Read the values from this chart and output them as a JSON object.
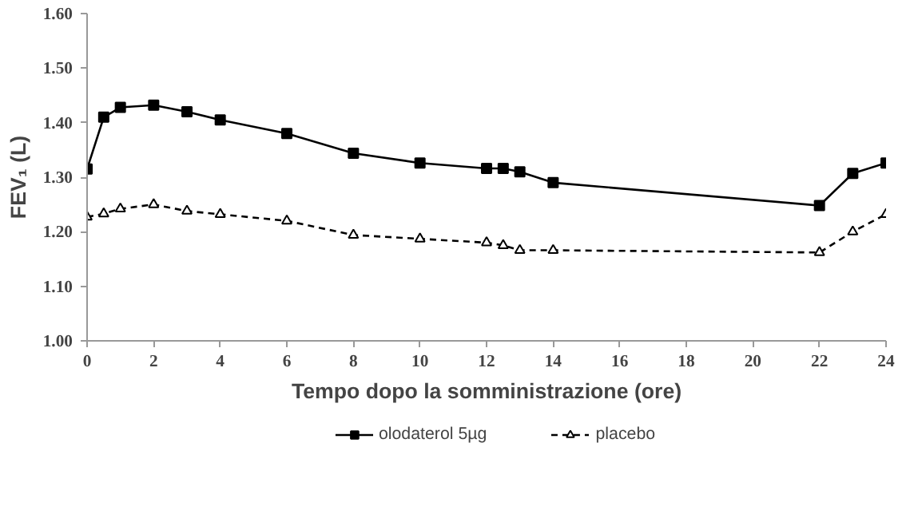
{
  "chart_data": {
    "type": "line",
    "xlabel": "Tempo dopo la somministrazione (ore)",
    "ylabel": "FEV₁ (L)",
    "x": [
      0,
      0.5,
      1,
      2,
      3,
      4,
      6,
      8,
      10,
      12,
      12.5,
      13,
      14,
      22,
      23,
      24
    ],
    "series": [
      {
        "name": "olodaterol 5µg",
        "color": "#000000",
        "marker": "square",
        "line_style": "solid",
        "values": [
          1.315,
          1.41,
          1.428,
          1.432,
          1.42,
          1.405,
          1.38,
          1.344,
          1.326,
          1.316,
          1.316,
          1.31,
          1.29,
          1.248,
          1.307,
          1.326
        ]
      },
      {
        "name": "placebo",
        "color": "#000000",
        "marker": "triangle",
        "line_style": "dashed",
        "values": [
          1.227,
          1.233,
          1.242,
          1.25,
          1.238,
          1.232,
          1.22,
          1.194,
          1.187,
          1.18,
          1.175,
          1.166,
          1.166,
          1.162,
          1.2,
          1.232
        ]
      }
    ],
    "xlim": [
      0,
      24
    ],
    "xticks": [
      0,
      2,
      4,
      6,
      8,
      10,
      12,
      14,
      16,
      18,
      20,
      22,
      24
    ],
    "ylim": [
      1.0,
      1.6
    ],
    "yticks": [
      {
        "value": 1.0,
        "label": "1.00"
      },
      {
        "value": 1.1,
        "label": "1.10"
      },
      {
        "value": 1.2,
        "label": "1.20"
      },
      {
        "value": 1.3,
        "label": "1.30"
      },
      {
        "value": 1.4,
        "label": "1.40"
      },
      {
        "value": 1.5,
        "label": "1.50"
      },
      {
        "value": 1.6,
        "label": "1.60"
      }
    ],
    "grid": false,
    "legend": "bottom"
  }
}
